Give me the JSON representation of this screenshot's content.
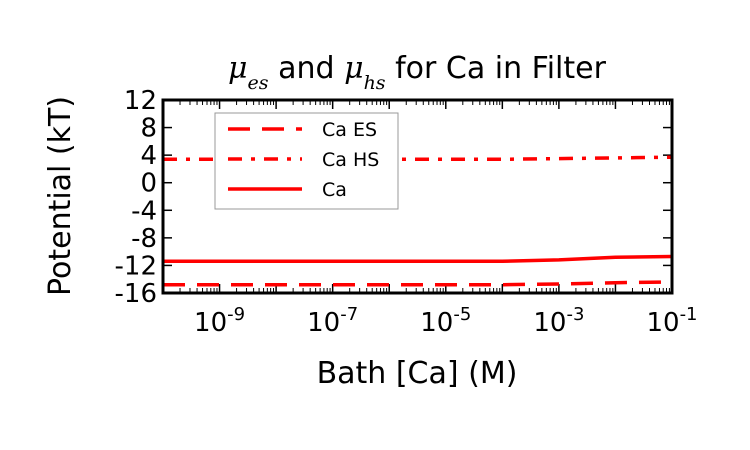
{
  "chart_data": {
    "type": "line",
    "title": {
      "mu_symbol": "μ",
      "sub_es": "es",
      "and_text": " and ",
      "sub_hs": "hs",
      "suffix": " for Ca in Filter"
    },
    "xlabel": "Bath [Ca] (M)",
    "ylabel": "Potential (kT)",
    "x_scale": "log",
    "xlim": [
      1e-10,
      0.1
    ],
    "ylim": [
      -16,
      12
    ],
    "x_ticks": [
      {
        "value": 1e-09,
        "base": "10",
        "exp": "-9"
      },
      {
        "value": 1e-07,
        "base": "10",
        "exp": "-7"
      },
      {
        "value": 1e-05,
        "base": "10",
        "exp": "-5"
      },
      {
        "value": 0.001,
        "base": "10",
        "exp": "-3"
      },
      {
        "value": 0.1,
        "base": "10",
        "exp": "-1"
      }
    ],
    "y_ticks": [
      12,
      8,
      4,
      0,
      -4,
      -8,
      -12,
      -16
    ],
    "y_tick_labels": [
      "12",
      "8",
      "4",
      "0",
      "-4",
      "-8",
      "-12",
      "-16"
    ],
    "grid": false,
    "legend_position": "upper-left",
    "line_color": "#ff0000",
    "series": [
      {
        "name": "Ca ES",
        "style": "dashed",
        "x": [
          1e-10,
          1e-09,
          1e-08,
          1e-07,
          1e-06,
          1e-05,
          0.0001,
          0.001,
          0.01,
          0.1
        ],
        "y": [
          -14.8,
          -14.8,
          -14.8,
          -14.8,
          -14.8,
          -14.8,
          -14.8,
          -14.7,
          -14.5,
          -14.4
        ]
      },
      {
        "name": "Ca HS",
        "style": "dashdot",
        "x": [
          1e-10,
          1e-09,
          1e-08,
          1e-07,
          1e-06,
          1e-05,
          0.0001,
          0.001,
          0.01,
          0.1
        ],
        "y": [
          3.4,
          3.4,
          3.4,
          3.4,
          3.4,
          3.4,
          3.4,
          3.5,
          3.6,
          3.7
        ]
      },
      {
        "name": "Ca",
        "style": "solid",
        "x": [
          1e-10,
          1e-09,
          1e-08,
          1e-07,
          1e-06,
          1e-05,
          0.0001,
          0.001,
          0.01,
          0.1
        ],
        "y": [
          -11.4,
          -11.4,
          -11.4,
          -11.4,
          -11.4,
          -11.4,
          -11.4,
          -11.2,
          -10.8,
          -10.7
        ]
      }
    ]
  }
}
